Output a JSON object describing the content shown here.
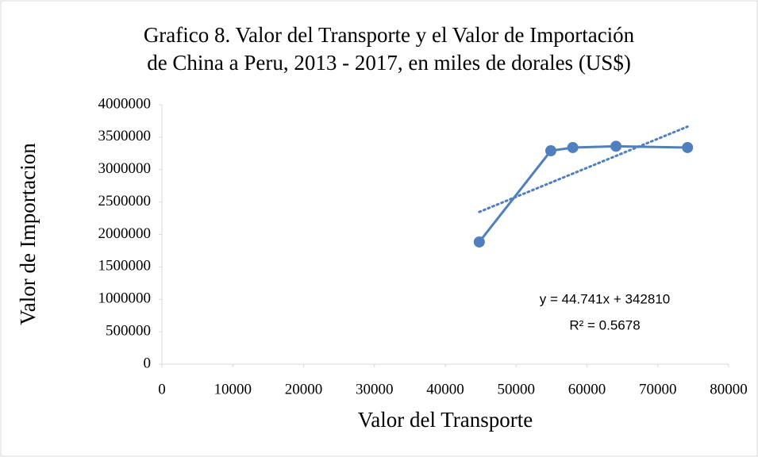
{
  "chart_data": {
    "type": "scatter",
    "title": [
      "Grafico 8. Valor del Transporte y el Valor de Importación",
      "de China a Peru, 2013 - 2017, en miles de dorales (US$)"
    ],
    "xlabel": "Valor del Transporte",
    "ylabel": "Valor de Importacion",
    "series": [
      {
        "name": "Valor de Importacion",
        "color": "#4f7fbf",
        "x": [
          44800,
          54900,
          58000,
          64100,
          74200
        ],
        "values": [
          1884000,
          3290000,
          3340000,
          3360000,
          3340000
        ]
      }
    ],
    "trendline": {
      "slope": 44.741,
      "intercept": 342810,
      "label": "y = 44.741x + 342810",
      "r2_label": "R² = 0.5678"
    },
    "xlim": [
      0,
      80000
    ],
    "xticks": [
      0,
      10000,
      20000,
      30000,
      40000,
      50000,
      60000,
      70000,
      80000
    ],
    "ylim": [
      0,
      4000000
    ],
    "yticks": [
      0,
      500000,
      1000000,
      1500000,
      2000000,
      2500000,
      3000000,
      3500000,
      4000000
    ],
    "grid": false
  }
}
